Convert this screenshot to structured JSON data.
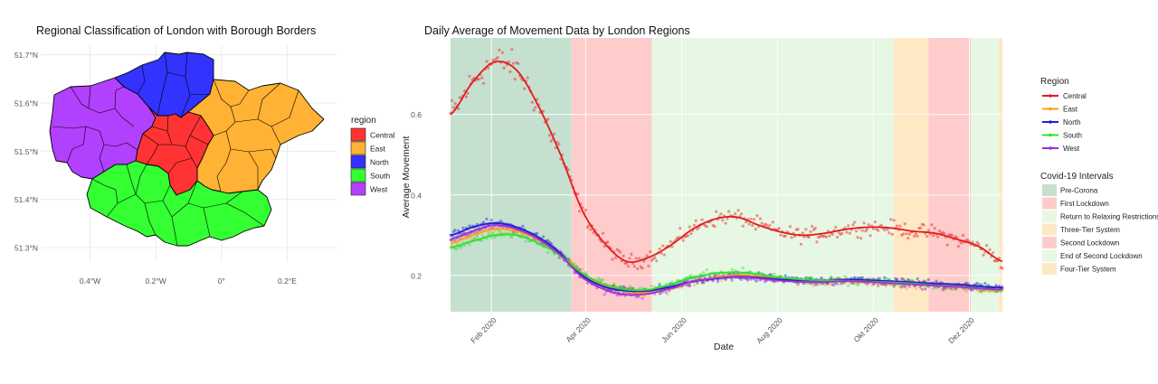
{
  "chart_data": [
    {
      "type": "map",
      "title": "Regional Classification of London with Borough Borders",
      "x_ticks": [
        "0.4°W",
        "0.2°W",
        "0°",
        "0.2°E"
      ],
      "y_ticks": [
        "51.7°N",
        "51.6°N",
        "51.5°N",
        "51.4°N",
        "51.3°N"
      ],
      "xlim": [
        -0.55,
        0.35
      ],
      "ylim": [
        51.27,
        51.72
      ],
      "legend": {
        "title": "region",
        "position": "right",
        "items": [
          {
            "name": "Central",
            "color": "#ff3333"
          },
          {
            "name": "East",
            "color": "#ffb233"
          },
          {
            "name": "North",
            "color": "#3333ff"
          },
          {
            "name": "South",
            "color": "#33ff33"
          },
          {
            "name": "West",
            "color": "#b240ff"
          }
        ]
      }
    },
    {
      "type": "line",
      "title": "Daily Average of Movement Data by London Regions",
      "xlabel": "Date",
      "ylabel": "Average Movement",
      "x_ticks": [
        "Feb 2020",
        "Apr 2020",
        "Jun 2020",
        "Aug 2020",
        "Okt 2020",
        "Dez 2020"
      ],
      "x_tick_dates": [
        "2020-02-01",
        "2020-04-01",
        "2020-06-01",
        "2020-08-01",
        "2020-10-01",
        "2020-12-01"
      ],
      "xlim": [
        "2020-01-06",
        "2020-12-22"
      ],
      "y_ticks": [
        0.2,
        0.4,
        0.6
      ],
      "ylim": [
        0.11,
        0.79
      ],
      "grid": true,
      "legend_position": "right",
      "series_legend_title": "Region",
      "series": [
        {
          "name": "Central",
          "color": "#e41a1c",
          "x": [
            "2020-01-06",
            "2020-01-20",
            "2020-02-03",
            "2020-02-17",
            "2020-03-02",
            "2020-03-16",
            "2020-03-30",
            "2020-04-13",
            "2020-04-27",
            "2020-05-11",
            "2020-05-25",
            "2020-06-08",
            "2020-06-22",
            "2020-07-06",
            "2020-07-20",
            "2020-08-03",
            "2020-08-17",
            "2020-08-31",
            "2020-09-14",
            "2020-09-28",
            "2020-10-12",
            "2020-10-26",
            "2020-11-09",
            "2020-11-23",
            "2020-12-07",
            "2020-12-22"
          ],
          "values": [
            0.6,
            0.68,
            0.73,
            0.71,
            0.62,
            0.5,
            0.36,
            0.28,
            0.235,
            0.245,
            0.275,
            0.315,
            0.34,
            0.345,
            0.325,
            0.308,
            0.3,
            0.305,
            0.315,
            0.32,
            0.318,
            0.31,
            0.305,
            0.29,
            0.272,
            0.235
          ]
        },
        {
          "name": "East",
          "color": "#ff9f1c",
          "x": [
            "2020-01-06",
            "2020-01-20",
            "2020-02-03",
            "2020-02-17",
            "2020-03-02",
            "2020-03-16",
            "2020-03-30",
            "2020-04-13",
            "2020-04-27",
            "2020-05-11",
            "2020-05-25",
            "2020-06-08",
            "2020-06-22",
            "2020-07-06",
            "2020-07-20",
            "2020-08-03",
            "2020-08-17",
            "2020-08-31",
            "2020-09-14",
            "2020-09-28",
            "2020-10-12",
            "2020-10-26",
            "2020-11-09",
            "2020-11-23",
            "2020-12-07",
            "2020-12-22"
          ],
          "values": [
            0.28,
            0.3,
            0.315,
            0.31,
            0.288,
            0.255,
            0.205,
            0.175,
            0.16,
            0.158,
            0.168,
            0.185,
            0.195,
            0.2,
            0.198,
            0.19,
            0.185,
            0.185,
            0.185,
            0.183,
            0.18,
            0.178,
            0.175,
            0.172,
            0.167,
            0.162
          ]
        },
        {
          "name": "North",
          "color": "#1f1fd6",
          "x": [
            "2020-01-06",
            "2020-01-20",
            "2020-02-03",
            "2020-02-17",
            "2020-03-02",
            "2020-03-16",
            "2020-03-30",
            "2020-04-13",
            "2020-04-27",
            "2020-05-11",
            "2020-05-25",
            "2020-06-08",
            "2020-06-22",
            "2020-07-06",
            "2020-07-20",
            "2020-08-03",
            "2020-08-17",
            "2020-08-31",
            "2020-09-14",
            "2020-09-28",
            "2020-10-12",
            "2020-10-26",
            "2020-11-09",
            "2020-11-23",
            "2020-12-07",
            "2020-12-22"
          ],
          "values": [
            0.3,
            0.32,
            0.33,
            0.32,
            0.295,
            0.255,
            0.2,
            0.172,
            0.162,
            0.162,
            0.172,
            0.185,
            0.192,
            0.197,
            0.195,
            0.19,
            0.188,
            0.188,
            0.19,
            0.188,
            0.186,
            0.183,
            0.18,
            0.178,
            0.173,
            0.17
          ]
        },
        {
          "name": "South",
          "color": "#2fe02f",
          "x": [
            "2020-01-06",
            "2020-01-20",
            "2020-02-03",
            "2020-02-17",
            "2020-03-02",
            "2020-03-16",
            "2020-03-30",
            "2020-04-13",
            "2020-04-27",
            "2020-05-11",
            "2020-05-25",
            "2020-06-08",
            "2020-06-22",
            "2020-07-06",
            "2020-07-20",
            "2020-08-03",
            "2020-08-17",
            "2020-08-31",
            "2020-09-14",
            "2020-09-28",
            "2020-10-12",
            "2020-10-26",
            "2020-11-09",
            "2020-11-23",
            "2020-12-07",
            "2020-12-22"
          ],
          "values": [
            0.27,
            0.285,
            0.3,
            0.3,
            0.28,
            0.25,
            0.205,
            0.178,
            0.165,
            0.165,
            0.178,
            0.195,
            0.205,
            0.208,
            0.203,
            0.195,
            0.19,
            0.188,
            0.187,
            0.185,
            0.183,
            0.18,
            0.176,
            0.173,
            0.168,
            0.163
          ]
        },
        {
          "name": "West",
          "color": "#a52bd9",
          "x": [
            "2020-01-06",
            "2020-01-20",
            "2020-02-03",
            "2020-02-17",
            "2020-03-02",
            "2020-03-16",
            "2020-03-30",
            "2020-04-13",
            "2020-04-27",
            "2020-05-11",
            "2020-05-25",
            "2020-06-08",
            "2020-06-22",
            "2020-07-06",
            "2020-07-20",
            "2020-08-03",
            "2020-08-17",
            "2020-08-31",
            "2020-09-14",
            "2020-09-28",
            "2020-10-12",
            "2020-10-26",
            "2020-11-09",
            "2020-11-23",
            "2020-12-07",
            "2020-12-22"
          ],
          "values": [
            0.29,
            0.31,
            0.325,
            0.315,
            0.29,
            0.25,
            0.195,
            0.165,
            0.152,
            0.155,
            0.168,
            0.185,
            0.193,
            0.197,
            0.193,
            0.187,
            0.184,
            0.184,
            0.186,
            0.184,
            0.181,
            0.178,
            0.175,
            0.172,
            0.168,
            0.165
          ]
        }
      ],
      "intervals_legend_title": "Covid-19 Intervals",
      "intervals": [
        {
          "name": "Pre-Corona",
          "color": "#c6e0cf",
          "start": "2020-01-06",
          "end": "2020-03-23"
        },
        {
          "name": "First Lockdown",
          "color": "#ffcccc",
          "start": "2020-03-23",
          "end": "2020-05-13"
        },
        {
          "name": "Return to Relaxing Restrictions",
          "color": "#e6f7e4",
          "start": "2020-05-13",
          "end": "2020-10-14"
        },
        {
          "name": "Three-Tier System",
          "color": "#ffe8c4",
          "start": "2020-10-14",
          "end": "2020-11-05"
        },
        {
          "name": "Second Lockdown",
          "color": "#ffcccc",
          "start": "2020-11-05",
          "end": "2020-12-02"
        },
        {
          "name": "End of Second Lockdown",
          "color": "#e6f7e4",
          "start": "2020-12-02",
          "end": "2020-12-20"
        },
        {
          "name": "Four-Tier System",
          "color": "#ffe8c4",
          "start": "2020-12-20",
          "end": "2020-12-31"
        }
      ]
    }
  ]
}
